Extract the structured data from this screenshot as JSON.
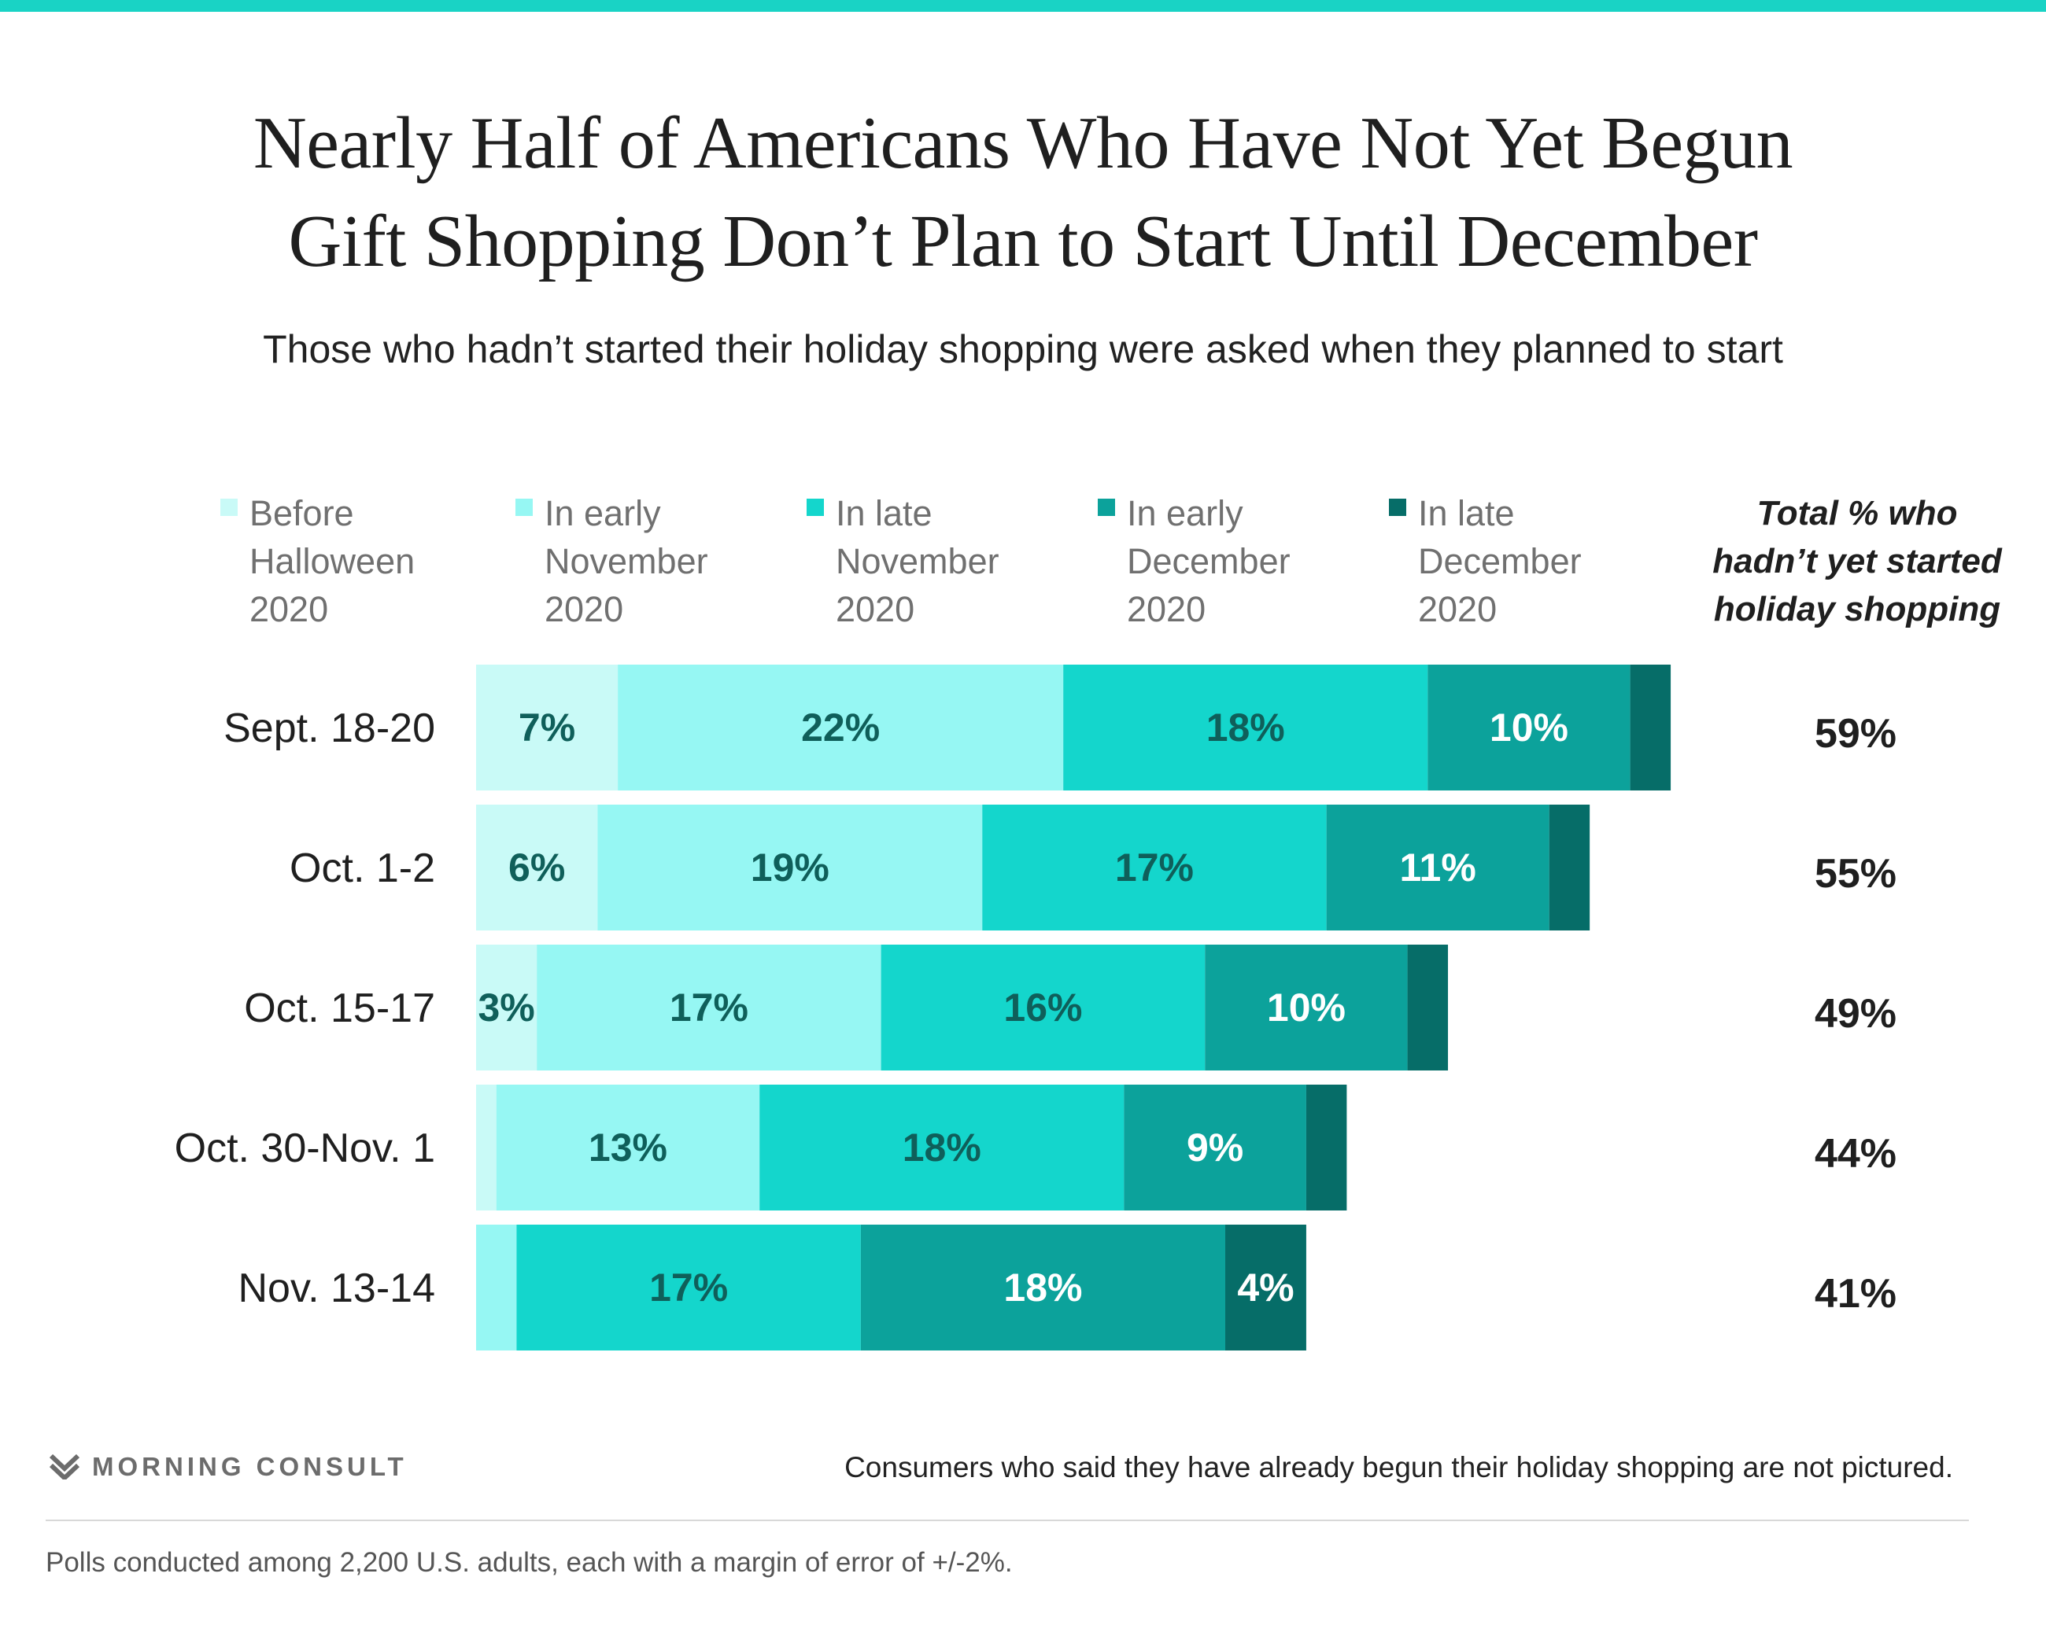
{
  "header": {
    "title_line1": "Nearly Half of Americans Who Have Not Yet Begun",
    "title_line2": "Gift Shopping Don’t Plan to Start Until December",
    "subtitle": "Those who hadn’t started their holiday shopping were asked when they planned to start"
  },
  "legend": {
    "items": [
      {
        "label": "Before\nHalloween\n2020",
        "color": "#c9faf7"
      },
      {
        "label": "In early\nNovember\n2020",
        "color": "#96f7f3"
      },
      {
        "label": "In late\nNovember\n2020",
        "color": "#14d6cc"
      },
      {
        "label": "In early\nDecember\n2020",
        "color": "#0ca29b"
      },
      {
        "label": "In late\nDecember\n2020",
        "color": "#066d68"
      }
    ],
    "total_header": "Total % who\nhadn’t yet started\nholiday shopping"
  },
  "chart_data": {
    "type": "bar",
    "orientation": "horizontal",
    "stacked": true,
    "categories": [
      "Sept. 18-20",
      "Oct. 1-2",
      "Oct. 15-17",
      "Oct. 30-Nov. 1",
      "Nov. 13-14"
    ],
    "series": [
      {
        "name": "Before Halloween 2020",
        "values": [
          7,
          6,
          3,
          1,
          null
        ],
        "labels": [
          "7%",
          "6%",
          "3%",
          "",
          ""
        ]
      },
      {
        "name": "In early November 2020",
        "values": [
          22,
          19,
          17,
          13,
          2
        ],
        "labels": [
          "22%",
          "19%",
          "17%",
          "13%",
          ""
        ]
      },
      {
        "name": "In late November 2020",
        "values": [
          18,
          17,
          16,
          18,
          17
        ],
        "labels": [
          "18%",
          "17%",
          "16%",
          "18%",
          "17%"
        ]
      },
      {
        "name": "In early December 2020",
        "values": [
          10,
          11,
          10,
          9,
          18
        ],
        "labels": [
          "10%",
          "11%",
          "10%",
          "9%",
          "18%"
        ]
      },
      {
        "name": "In late December 2020",
        "values": [
          2,
          2,
          2,
          2,
          4
        ],
        "labels": [
          "",
          "",
          "",
          "",
          "4%"
        ]
      }
    ],
    "totals": [
      "59%",
      "55%",
      "49%",
      "44%",
      "41%"
    ],
    "xlim": [
      0,
      59
    ]
  },
  "footer": {
    "brand": "MORNING CONSULT",
    "note": "Consumers who said they have already begun their holiday shopping are not pictured.",
    "source": "Polls conducted among 2,200 U.S. adults, each with a margin of error of +/-2%."
  }
}
